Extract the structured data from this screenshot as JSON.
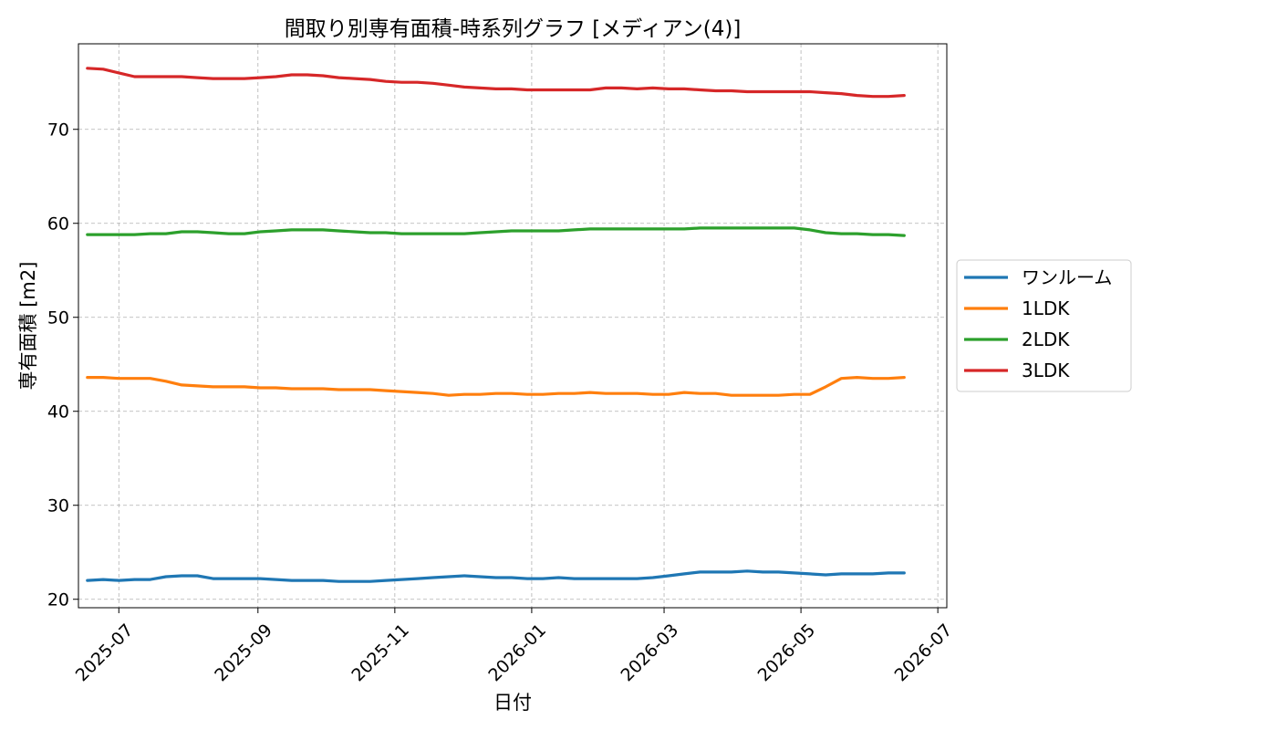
{
  "chart_data": {
    "type": "line",
    "title": "間取り別専有面積-時系列グラフ [メディアン(4)]",
    "xlabel": "日付",
    "ylabel": "専有面積 [m2]",
    "x_tick_labels": [
      "2025-07",
      "2025-09",
      "2025-11",
      "2026-01",
      "2026-03",
      "2026-05",
      "2026-07"
    ],
    "x_ticks": [
      "2025-07-01",
      "2025-09-01",
      "2025-11-01",
      "2026-01-01",
      "2026-03-01",
      "2026-05-01",
      "2026-07-01"
    ],
    "y_ticks": [
      20,
      30,
      40,
      50,
      60,
      70
    ],
    "xlim": [
      "2025-06-13",
      "2026-07-05"
    ],
    "ylim": [
      19.1,
      79.1
    ],
    "grid": true,
    "legend_position": "outside-right",
    "x": [
      "2025-06-17",
      "2025-06-24",
      "2025-07-01",
      "2025-07-08",
      "2025-07-15",
      "2025-07-22",
      "2025-07-29",
      "2025-08-05",
      "2025-08-12",
      "2025-08-19",
      "2025-08-26",
      "2025-09-02",
      "2025-09-09",
      "2025-09-16",
      "2025-09-23",
      "2025-09-30",
      "2025-10-07",
      "2025-10-14",
      "2025-10-21",
      "2025-10-28",
      "2025-11-04",
      "2025-11-11",
      "2025-11-18",
      "2025-11-25",
      "2025-12-02",
      "2025-12-09",
      "2025-12-16",
      "2025-12-23",
      "2025-12-30",
      "2026-01-06",
      "2026-01-13",
      "2026-01-20",
      "2026-01-27",
      "2026-02-03",
      "2026-02-10",
      "2026-02-17",
      "2026-02-24",
      "2026-03-03",
      "2026-03-10",
      "2026-03-17",
      "2026-03-24",
      "2026-03-31",
      "2026-04-07",
      "2026-04-14",
      "2026-04-21",
      "2026-04-28",
      "2026-05-05",
      "2026-05-12",
      "2026-05-19",
      "2026-05-26",
      "2026-06-02",
      "2026-06-09",
      "2026-06-16"
    ],
    "series": [
      {
        "name": "ワンルーム",
        "color": "#1f77b4",
        "values": [
          22.0,
          22.1,
          22.0,
          22.1,
          22.1,
          22.4,
          22.5,
          22.5,
          22.2,
          22.2,
          22.2,
          22.2,
          22.1,
          22.0,
          22.0,
          22.0,
          21.9,
          21.9,
          21.9,
          22.0,
          22.1,
          22.2,
          22.3,
          22.4,
          22.5,
          22.4,
          22.3,
          22.3,
          22.2,
          22.2,
          22.3,
          22.2,
          22.2,
          22.2,
          22.2,
          22.2,
          22.3,
          22.5,
          22.7,
          22.9,
          22.9,
          22.9,
          23.0,
          22.9,
          22.9,
          22.8,
          22.7,
          22.6,
          22.7,
          22.7,
          22.7,
          22.8,
          22.8
        ]
      },
      {
        "name": "1LDK",
        "color": "#ff7f0e",
        "values": [
          43.6,
          43.6,
          43.5,
          43.5,
          43.5,
          43.2,
          42.8,
          42.7,
          42.6,
          42.6,
          42.6,
          42.5,
          42.5,
          42.4,
          42.4,
          42.4,
          42.3,
          42.3,
          42.3,
          42.2,
          42.1,
          42.0,
          41.9,
          41.7,
          41.8,
          41.8,
          41.9,
          41.9,
          41.8,
          41.8,
          41.9,
          41.9,
          42.0,
          41.9,
          41.9,
          41.9,
          41.8,
          41.8,
          42.0,
          41.9,
          41.9,
          41.7,
          41.7,
          41.7,
          41.7,
          41.8,
          41.8,
          42.6,
          43.5,
          43.6,
          43.5,
          43.5,
          43.6
        ]
      },
      {
        "name": "2LDK",
        "color": "#2ca02c",
        "values": [
          58.8,
          58.8,
          58.8,
          58.8,
          58.9,
          58.9,
          59.1,
          59.1,
          59.0,
          58.9,
          58.9,
          59.1,
          59.2,
          59.3,
          59.3,
          59.3,
          59.2,
          59.1,
          59.0,
          59.0,
          58.9,
          58.9,
          58.9,
          58.9,
          58.9,
          59.0,
          59.1,
          59.2,
          59.2,
          59.2,
          59.2,
          59.3,
          59.4,
          59.4,
          59.4,
          59.4,
          59.4,
          59.4,
          59.4,
          59.5,
          59.5,
          59.5,
          59.5,
          59.5,
          59.5,
          59.5,
          59.3,
          59.0,
          58.9,
          58.9,
          58.8,
          58.8,
          58.7
        ]
      },
      {
        "name": "3LDK",
        "color": "#d62728",
        "values": [
          76.5,
          76.4,
          76.0,
          75.6,
          75.6,
          75.6,
          75.6,
          75.5,
          75.4,
          75.4,
          75.4,
          75.5,
          75.6,
          75.8,
          75.8,
          75.7,
          75.5,
          75.4,
          75.3,
          75.1,
          75.0,
          75.0,
          74.9,
          74.7,
          74.5,
          74.4,
          74.3,
          74.3,
          74.2,
          74.2,
          74.2,
          74.2,
          74.2,
          74.4,
          74.4,
          74.3,
          74.4,
          74.3,
          74.3,
          74.2,
          74.1,
          74.1,
          74.0,
          74.0,
          74.0,
          74.0,
          74.0,
          73.9,
          73.8,
          73.6,
          73.5,
          73.5,
          73.6
        ]
      }
    ]
  }
}
